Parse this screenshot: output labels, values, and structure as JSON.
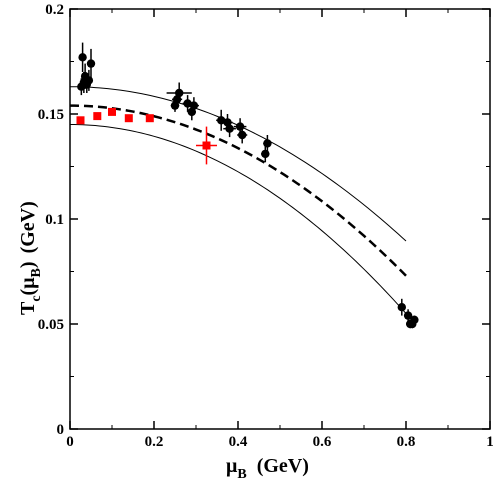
{
  "chart_data": {
    "type": "scatter",
    "xlabel_main": "μ",
    "xlabel_sub": "B",
    "xlabel_unit": "(GeV)",
    "ylabel_main": "T",
    "ylabel_sub1": "c",
    "ylabel_paren_open": "(μ",
    "ylabel_sub2": "B",
    "ylabel_paren_close": ")",
    "ylabel_unit": "(GeV)",
    "xlim": [
      0,
      1
    ],
    "ylim": [
      0,
      0.2
    ],
    "x_ticks": [
      "0",
      "0.2",
      "0.4",
      "0.6",
      "0.8",
      "1"
    ],
    "y_ticks": [
      "0",
      "0.05",
      "0.1",
      "0.15",
      "0.2"
    ],
    "x_tick_values": [
      0,
      0.2,
      0.4,
      0.6,
      0.8,
      1.0
    ],
    "y_tick_values": [
      0,
      0.05,
      0.1,
      0.15,
      0.2
    ],
    "grid": false,
    "legend": "none",
    "colors": {
      "black": "#000000",
      "red": "#ff0000"
    },
    "curves": [
      {
        "style": "solid-thin",
        "T0": 0.163,
        "x_end": 0.8,
        "y_end": 0.0895
      },
      {
        "style": "dashed-thick",
        "T0": 0.154,
        "x_end": 0.8,
        "y_end": 0.073
      },
      {
        "style": "solid-thin",
        "T0": 0.145,
        "x_end": 0.8,
        "y_end": 0.055
      }
    ],
    "black_points": [
      {
        "x": 0.027,
        "y": 0.163,
        "xerr": 0.003,
        "yerr": 0.004
      },
      {
        "x": 0.03,
        "y": 0.177,
        "xerr": 0.003,
        "yerr": 0.007
      },
      {
        "x": 0.033,
        "y": 0.165,
        "xerr": 0.004,
        "yerr": 0.005
      },
      {
        "x": 0.036,
        "y": 0.168,
        "xerr": 0.004,
        "yerr": 0.006
      },
      {
        "x": 0.04,
        "y": 0.164,
        "xerr": 0.004,
        "yerr": 0.004
      },
      {
        "x": 0.045,
        "y": 0.166,
        "xerr": 0.004,
        "yerr": 0.005
      },
      {
        "x": 0.05,
        "y": 0.174,
        "xerr": 0.004,
        "yerr": 0.007
      },
      {
        "x": 0.25,
        "y": 0.154,
        "xerr": 0.01,
        "yerr": 0.003
      },
      {
        "x": 0.255,
        "y": 0.157,
        "xerr": 0.012,
        "yerr": 0.004
      },
      {
        "x": 0.26,
        "y": 0.16,
        "xerr": 0.03,
        "yerr": 0.005
      },
      {
        "x": 0.28,
        "y": 0.155,
        "xerr": 0.012,
        "yerr": 0.004
      },
      {
        "x": 0.29,
        "y": 0.151,
        "xerr": 0.01,
        "yerr": 0.004
      },
      {
        "x": 0.295,
        "y": 0.154,
        "xerr": 0.012,
        "yerr": 0.004
      },
      {
        "x": 0.36,
        "y": 0.147,
        "xerr": 0.012,
        "yerr": 0.005
      },
      {
        "x": 0.375,
        "y": 0.146,
        "xerr": 0.012,
        "yerr": 0.004
      },
      {
        "x": 0.38,
        "y": 0.143,
        "xerr": 0.015,
        "yerr": 0.004
      },
      {
        "x": 0.405,
        "y": 0.144,
        "xerr": 0.015,
        "yerr": 0.004
      },
      {
        "x": 0.41,
        "y": 0.14,
        "xerr": 0.012,
        "yerr": 0.004
      },
      {
        "x": 0.465,
        "y": 0.131,
        "xerr": 0.01,
        "yerr": 0.004
      },
      {
        "x": 0.47,
        "y": 0.136,
        "xerr": 0.01,
        "yerr": 0.004
      },
      {
        "x": 0.79,
        "y": 0.058,
        "xerr": 0.008,
        "yerr": 0.004
      },
      {
        "x": 0.805,
        "y": 0.054,
        "xerr": 0.008,
        "yerr": 0.003
      },
      {
        "x": 0.81,
        "y": 0.05,
        "xerr": 0.01,
        "yerr": 0.002
      },
      {
        "x": 0.815,
        "y": 0.05,
        "xerr": 0.008,
        "yerr": 0.002
      },
      {
        "x": 0.82,
        "y": 0.052,
        "xerr": 0.008,
        "yerr": 0.002
      }
    ],
    "red_points": [
      {
        "x": 0.025,
        "y": 0.147
      },
      {
        "x": 0.065,
        "y": 0.149
      },
      {
        "x": 0.1,
        "y": 0.151
      },
      {
        "x": 0.14,
        "y": 0.148
      },
      {
        "x": 0.19,
        "y": 0.148
      },
      {
        "x": 0.325,
        "y": 0.135,
        "xerr": 0.025,
        "yerr": 0.009
      }
    ]
  }
}
